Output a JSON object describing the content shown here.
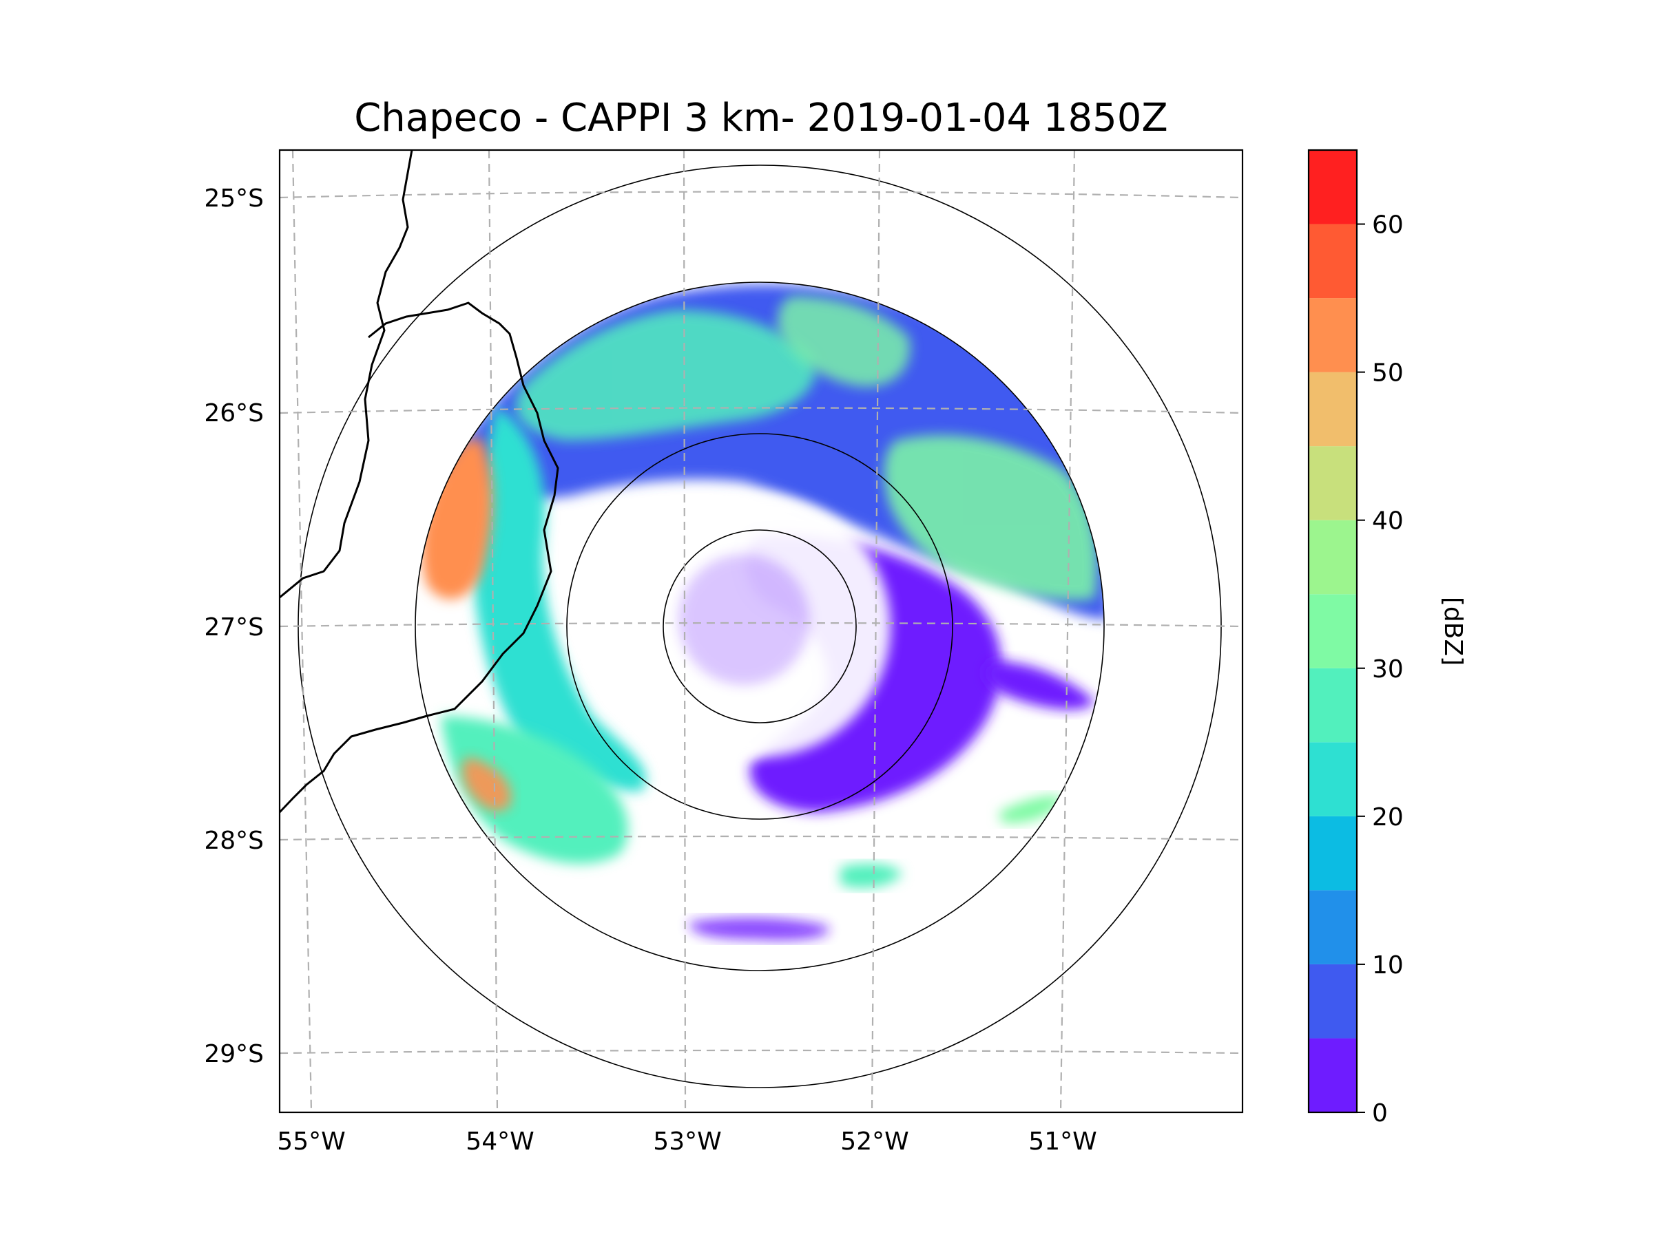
{
  "title": "Chapeco - CAPPI 3 km- 2019-01-04 1850Z",
  "map": {
    "lat_labels": [
      "25°S",
      "26°S",
      "27°S",
      "28°S",
      "29°S"
    ],
    "lon_labels": [
      "55°W",
      "54°W",
      "53°W",
      "52°W",
      "51°W"
    ],
    "radar_site": "Chapeco",
    "product": "CAPPI 3 km",
    "datetime": "2019-01-04 1850Z"
  },
  "colorbar": {
    "label": "[dBZ]",
    "ticks": [
      "0",
      "10",
      "20",
      "30",
      "40",
      "50",
      "60"
    ],
    "range": [
      0,
      65
    ],
    "step": 5,
    "colors": [
      "#6e1cff",
      "#3f5af0",
      "#2190ea",
      "#0cbce3",
      "#2ee0d2",
      "#52f0bd",
      "#7ffaa4",
      "#9cf58e",
      "#c8e07c",
      "#f1be6c",
      "#ff8f4f",
      "#ff5a33",
      "#ff2020"
    ]
  }
}
